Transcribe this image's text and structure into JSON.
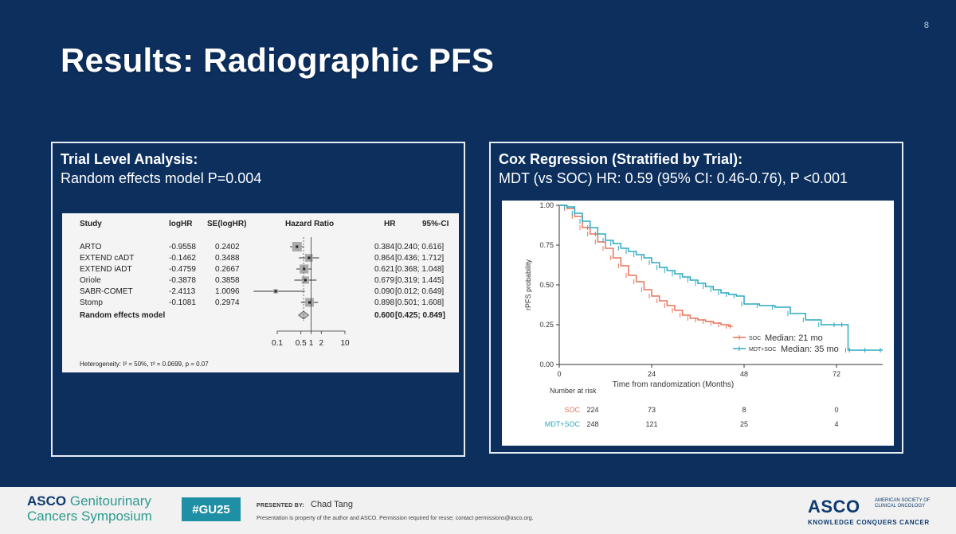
{
  "slide": {
    "number": "8",
    "title": "Results: Radiographic PFS"
  },
  "left_panel": {
    "heading": "Trial Level Analysis:",
    "subheading": "Random effects model P=0.004",
    "forest": {
      "headers": {
        "study": "Study",
        "loghr": "logHR",
        "se": "SE(logHR)",
        "hr_plot": "Hazard Ratio",
        "hr": "HR",
        "ci": "95%-CI"
      },
      "studies": [
        {
          "study": "ARTO",
          "loghr": "-0.9558",
          "se": "0.2402",
          "hr": "0.384",
          "ci": "[0.240; 0.616]",
          "hr_val": 0.384,
          "lo": 0.24,
          "hi": 0.616,
          "weight": 1.0
        },
        {
          "study": "EXTEND cADT",
          "loghr": "-0.1462",
          "se": "0.3488",
          "hr": "0.864",
          "ci": "[0.436; 1.712]",
          "hr_val": 0.864,
          "lo": 0.436,
          "hi": 1.712,
          "weight": 0.7
        },
        {
          "study": "EXTEND iADT",
          "loghr": "-0.4759",
          "se": "0.2667",
          "hr": "0.621",
          "ci": "[0.368; 1.048]",
          "hr_val": 0.621,
          "lo": 0.368,
          "hi": 1.048,
          "weight": 0.9
        },
        {
          "study": "Oriole",
          "loghr": "-0.3878",
          "se": "0.3858",
          "hr": "0.679",
          "ci": "[0.319; 1.445]",
          "hr_val": 0.679,
          "lo": 0.319,
          "hi": 1.445,
          "weight": 0.65
        },
        {
          "study": "SABR-COMET",
          "loghr": "-2.4113",
          "se": "1.0096",
          "hr": "0.090",
          "ci": "[0.012; 0.649]",
          "hr_val": 0.09,
          "lo": 0.012,
          "hi": 0.649,
          "weight": 0.2
        },
        {
          "study": "Stomp",
          "loghr": "-0.1081",
          "se": "0.2974",
          "hr": "0.898",
          "ci": "[0.501; 1.608]",
          "hr_val": 0.898,
          "lo": 0.501,
          "hi": 1.608,
          "weight": 0.85
        }
      ],
      "overall": {
        "study": "Random effects model",
        "hr": "0.600",
        "ci": "[0.425; 0.849]",
        "hr_val": 0.6,
        "lo": 0.425,
        "hi": 0.849
      },
      "axis_ticks": [
        {
          "value": 0.1,
          "label": "0.1"
        },
        {
          "value": 0.5,
          "label": "0.5"
        },
        {
          "value": 1,
          "label": "1"
        },
        {
          "value": 2,
          "label": "2"
        },
        {
          "value": 10,
          "label": "10"
        }
      ],
      "heterogeneity": "Heterogeneity: I² = 50%, τ² = 0.0699, p = 0.07"
    }
  },
  "right_panel": {
    "heading": "Cox Regression (Stratified by Trial):",
    "subheading": "MDT (vs SOC) HR: 0.59 (95% CI: 0.46-0.76), P <0.001"
  },
  "chart_data": {
    "type": "line",
    "xlabel": "Time from randomization (Months)",
    "ylabel": "rPFS probability",
    "xlim": [
      0,
      84
    ],
    "ylim": [
      0,
      1
    ],
    "x_ticks": [
      0,
      24,
      48,
      72
    ],
    "y_ticks": [
      "0.00",
      "0.25",
      "0.50",
      "0.75",
      "1.00"
    ],
    "y_tick_values": [
      0,
      0.25,
      0.5,
      0.75,
      1.0
    ],
    "colors": {
      "SOC": "#e8735a",
      "MDT+SOC": "#2aa9c0"
    },
    "series": [
      {
        "name": "SOC",
        "median_label": "Median: 21 mo",
        "x": [
          0,
          2,
          4,
          6,
          8,
          10,
          12,
          14,
          16,
          18,
          20,
          22,
          24,
          26,
          28,
          30,
          32,
          34,
          36,
          38,
          40,
          42,
          44,
          45
        ],
        "y": [
          1.0,
          0.98,
          0.93,
          0.86,
          0.82,
          0.77,
          0.73,
          0.67,
          0.62,
          0.56,
          0.52,
          0.47,
          0.43,
          0.4,
          0.37,
          0.34,
          0.31,
          0.29,
          0.28,
          0.27,
          0.26,
          0.25,
          0.24,
          0.24
        ]
      },
      {
        "name": "MDT+SOC",
        "median_label": "Median: 35 mo",
        "x": [
          0,
          2,
          4,
          6,
          8,
          10,
          12,
          14,
          16,
          18,
          20,
          22,
          24,
          26,
          28,
          30,
          32,
          34,
          36,
          38,
          40,
          42,
          44,
          46,
          48,
          52,
          56,
          60,
          64,
          68,
          72,
          74,
          75,
          76,
          80,
          84
        ],
        "y": [
          1.0,
          0.99,
          0.95,
          0.9,
          0.86,
          0.82,
          0.78,
          0.76,
          0.73,
          0.71,
          0.69,
          0.67,
          0.64,
          0.61,
          0.59,
          0.57,
          0.55,
          0.53,
          0.51,
          0.49,
          0.47,
          0.45,
          0.44,
          0.43,
          0.38,
          0.37,
          0.36,
          0.32,
          0.28,
          0.25,
          0.25,
          0.25,
          0.09,
          0.09,
          0.09,
          0.09
        ]
      }
    ],
    "risk_table": {
      "title": "Number at risk",
      "times": [
        0,
        24,
        48,
        72
      ],
      "rows": [
        {
          "group": "SOC",
          "values": [
            "224",
            "73",
            "8",
            "0"
          ]
        },
        {
          "group": "MDT+SOC",
          "values": [
            "248",
            "121",
            "25",
            "4"
          ]
        }
      ]
    }
  },
  "footer": {
    "asco_word": "ASCO",
    "symposium_line1": "Genitourinary",
    "symposium_line2": "Cancers Symposium",
    "hashtag": "#GU25",
    "presented_by": "PRESENTED BY:",
    "presenter": "Chad Tang",
    "notice": "Presentation is property of the author and ASCO. Permission required for reuse; contact permissions@asco.org.",
    "asco_logo": "ASCO",
    "asco_society": "AMERICAN SOCIETY OF CLINICAL ONCOLOGY",
    "tagline": "KNOWLEDGE CONQUERS CANCER"
  }
}
